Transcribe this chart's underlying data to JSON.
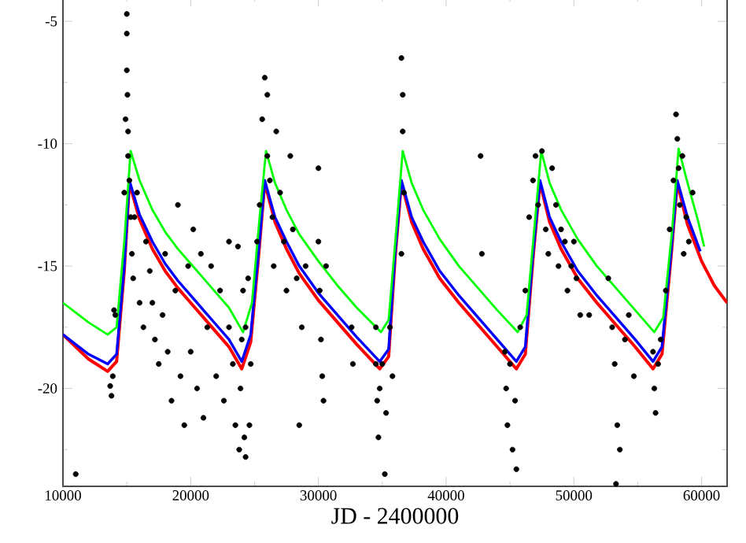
{
  "chart_data": {
    "type": "scatter",
    "xlabel": "JD - 2400000",
    "xlim": [
      10000,
      62000
    ],
    "ylim": [
      -24,
      -4
    ],
    "xticks": [
      10000,
      {
        "value": 15000,
        "label": null
      },
      20000,
      {
        "value": 25000,
        "label": null
      },
      30000,
      {
        "value": 35000,
        "label": null
      },
      40000,
      {
        "value": 45000,
        "label": null
      },
      50000,
      {
        "value": 55000,
        "label": null
      },
      60000
    ],
    "yticks": [
      {
        "value": -22.5,
        "label": null
      },
      -20,
      {
        "value": -17.5,
        "label": null
      },
      -15,
      {
        "value": -12.5,
        "label": null
      },
      -10,
      {
        "value": -7.5,
        "label": null
      },
      -5
    ],
    "grid": false,
    "series": [
      {
        "color": "#000000",
        "marker": "circle",
        "x": [
          11000,
          13700,
          13800,
          13900,
          14000,
          14100,
          14800,
          14900,
          15000,
          15000,
          15000,
          15050,
          15100,
          15100,
          15200,
          15300,
          15400,
          15500,
          15600,
          15800,
          16000,
          16300,
          16500,
          16800,
          17000,
          17200,
          17500,
          17800,
          18000,
          18200,
          18500,
          18800,
          19000,
          19200,
          19500,
          19800,
          20000,
          20200,
          20500,
          20800,
          21000,
          21300,
          21600,
          22000,
          22300,
          22600,
          23000,
          23000,
          23300,
          23500,
          23700,
          23800,
          23900,
          24000,
          24100,
          24200,
          24300,
          24500,
          24600,
          24700,
          24300,
          25200,
          25400,
          25600,
          25800,
          26000,
          26000,
          26200,
          26400,
          26500,
          26700,
          27000,
          27300,
          27500,
          27800,
          28000,
          28300,
          28700,
          29000,
          28500,
          30000,
          30000,
          30100,
          30200,
          30300,
          30400,
          30600,
          32600,
          32700,
          34500,
          34500,
          34600,
          34700,
          34800,
          35000,
          35200,
          35300,
          35600,
          35800,
          36500,
          36600,
          36600,
          36700,
          36500,
          42700,
          42800,
          44600,
          44700,
          44800,
          45000,
          45200,
          45400,
          45500,
          45800,
          46200,
          46500,
          46800,
          47000,
          47200,
          47500,
          47800,
          48000,
          48300,
          48600,
          48800,
          49000,
          49300,
          49500,
          49800,
          50200,
          50500,
          50000,
          51200,
          52700,
          53000,
          53200,
          53400,
          53600,
          53300,
          54000,
          54300,
          54700,
          56200,
          56300,
          56400,
          56600,
          56800,
          57200,
          57500,
          57800,
          58000,
          58100,
          58200,
          58300,
          58500,
          58800,
          59000,
          58600,
          59300
        ],
        "values": [
          -23.5,
          -19.9,
          -20.3,
          -19.5,
          -16.8,
          -17.0,
          -12,
          -9,
          -4.7,
          -5.5,
          -7,
          -8,
          -9.5,
          -10.5,
          -11.5,
          -13,
          -14.5,
          -15.5,
          -13,
          -12,
          -16.5,
          -17.5,
          -14,
          -15.2,
          -16.5,
          -18,
          -19,
          -17,
          -14.5,
          -18.5,
          -20.5,
          -16,
          -12.5,
          -19.5,
          -21.5,
          -15,
          -18.5,
          -13.5,
          -20,
          -14.5,
          -21.2,
          -17.5,
          -15,
          -19.5,
          -16,
          -20.5,
          -17.5,
          -14,
          -19,
          -21.5,
          -14.2,
          -22.5,
          -20,
          -18,
          -16,
          -22,
          -17.5,
          -15.5,
          -21.5,
          -19,
          -22.8,
          -14,
          -12.5,
          -9,
          -7.3,
          -8,
          -10.5,
          -11.5,
          -13,
          -15,
          -9.5,
          -12,
          -14,
          -16,
          -10.5,
          -13.5,
          -15.5,
          -17.5,
          -15,
          -21.5,
          -11,
          -14,
          -16,
          -18,
          -19.5,
          -20.5,
          -15,
          -17.5,
          -19,
          -17.5,
          -19,
          -20.5,
          -22,
          -20,
          -19,
          -23.5,
          -21,
          -17.5,
          -19.5,
          -6.5,
          -8,
          -9.5,
          -12,
          -14.5,
          -10.5,
          -14.5,
          -18.5,
          -20,
          -21.5,
          -19,
          -22.5,
          -20.5,
          -23.3,
          -17.5,
          -16,
          -13,
          -11.5,
          -10.5,
          -12.5,
          -10.3,
          -13.5,
          -14.5,
          -11,
          -12.5,
          -15,
          -13.5,
          -14,
          -16,
          -15,
          -15.5,
          -17,
          -14,
          -17,
          -15.5,
          -17.5,
          -19,
          -21.5,
          -22.5,
          -23.9,
          -18,
          -17,
          -19.5,
          -18.5,
          -20,
          -21,
          -19,
          -18,
          -16,
          -13.5,
          -11.5,
          -8.8,
          -9.8,
          -11,
          -12.5,
          -10.5,
          -13,
          -14,
          -14.5,
          -12
        ]
      },
      {
        "type": "line",
        "color": "#ff0000",
        "marker": "none",
        "x": [
          10000,
          12000,
          13500,
          14200,
          14800,
          15200,
          16000,
          17000,
          18000,
          19000,
          20000,
          21000,
          22000,
          23000,
          24000,
          24700,
          25300,
          25800,
          26600,
          27500,
          28500,
          30000,
          31500,
          33000,
          34800,
          35500,
          36000,
          36500,
          37300,
          38200,
          39500,
          41000,
          42500,
          44000,
          45500,
          46200,
          46800,
          47350,
          48100,
          49000,
          50300,
          51800,
          53300,
          54800,
          56200,
          56900,
          57600,
          58100,
          58900,
          60000,
          61000,
          62000
        ],
        "values": [
          -17.8,
          -18.8,
          -19.3,
          -18.9,
          -15.2,
          -11.6,
          -13.1,
          -14.3,
          -15.2,
          -15.9,
          -16.5,
          -17.1,
          -17.7,
          -18.3,
          -19.2,
          -18.1,
          -14.7,
          -11.6,
          -13.2,
          -14.3,
          -15.3,
          -16.4,
          -17.3,
          -18.2,
          -19.2,
          -18.7,
          -14.7,
          -11.6,
          -13.2,
          -14.3,
          -15.5,
          -16.5,
          -17.4,
          -18.3,
          -19.2,
          -18.6,
          -14.7,
          -11.6,
          -13.2,
          -14.3,
          -15.5,
          -16.5,
          -17.4,
          -18.3,
          -19.2,
          -18.6,
          -14.7,
          -11.6,
          -13.3,
          -14.8,
          -15.8,
          -16.5
        ]
      },
      {
        "type": "line",
        "color": "#0000ff",
        "marker": "none",
        "x": [
          10000,
          12000,
          13500,
          14200,
          14800,
          15200,
          16000,
          17000,
          18000,
          19000,
          20000,
          21000,
          22000,
          23000,
          24000,
          24700,
          25300,
          25800,
          26600,
          27500,
          28500,
          30000,
          31500,
          33000,
          34800,
          35500,
          36000,
          36500,
          37300,
          38200,
          39500,
          41000,
          42500,
          44000,
          45500,
          46200,
          46800,
          47350,
          48100,
          49000,
          50300,
          51800,
          53300,
          54800,
          56200,
          56900,
          57600,
          58100,
          58900,
          59900
        ],
        "values": [
          -17.8,
          -18.6,
          -19.0,
          -18.6,
          -15,
          -11.5,
          -12.9,
          -14.0,
          -14.9,
          -15.6,
          -16.2,
          -16.8,
          -17.4,
          -18.0,
          -18.9,
          -17.8,
          -14.5,
          -11.5,
          -13.0,
          -14.0,
          -15.0,
          -16.1,
          -17.0,
          -17.9,
          -18.9,
          -18.4,
          -14.5,
          -11.5,
          -13.0,
          -14.0,
          -15.2,
          -16.2,
          -17.1,
          -18.0,
          -18.9,
          -18.3,
          -14.5,
          -11.5,
          -13.0,
          -14.0,
          -15.2,
          -16.2,
          -17.1,
          -18.0,
          -18.9,
          -18.3,
          -14.5,
          -11.5,
          -13.0,
          -14.4
        ]
      },
      {
        "type": "line",
        "color": "#00ff00",
        "marker": "none",
        "x": [
          10000,
          12000,
          13500,
          14200,
          14800,
          15300,
          16000,
          17000,
          18000,
          19000,
          20000,
          21000,
          22000,
          23000,
          24100,
          24800,
          25400,
          25900,
          26600,
          27500,
          28500,
          30000,
          31500,
          33000,
          34900,
          35500,
          36100,
          36600,
          37300,
          38200,
          39500,
          41000,
          42500,
          44000,
          45600,
          46300,
          46900,
          47450,
          48100,
          49000,
          50300,
          51800,
          53300,
          54800,
          56300,
          57000,
          57700,
          58200,
          58900,
          59700,
          60200
        ],
        "values": [
          -16.5,
          -17.3,
          -17.8,
          -17.5,
          -14,
          -10.3,
          -11.5,
          -12.7,
          -13.6,
          -14.3,
          -14.9,
          -15.5,
          -16.1,
          -16.7,
          -17.7,
          -16.5,
          -13,
          -10.3,
          -11.6,
          -12.7,
          -13.7,
          -14.8,
          -15.8,
          -16.7,
          -17.7,
          -17.2,
          -13.5,
          -10.3,
          -11.6,
          -12.7,
          -13.9,
          -15,
          -15.9,
          -16.8,
          -17.7,
          -17,
          -13.5,
          -10.3,
          -11.6,
          -12.7,
          -13.9,
          -15,
          -15.9,
          -16.8,
          -17.7,
          -17.1,
          -13.5,
          -10.2,
          -11.6,
          -13.1,
          -14.2
        ]
      }
    ]
  }
}
